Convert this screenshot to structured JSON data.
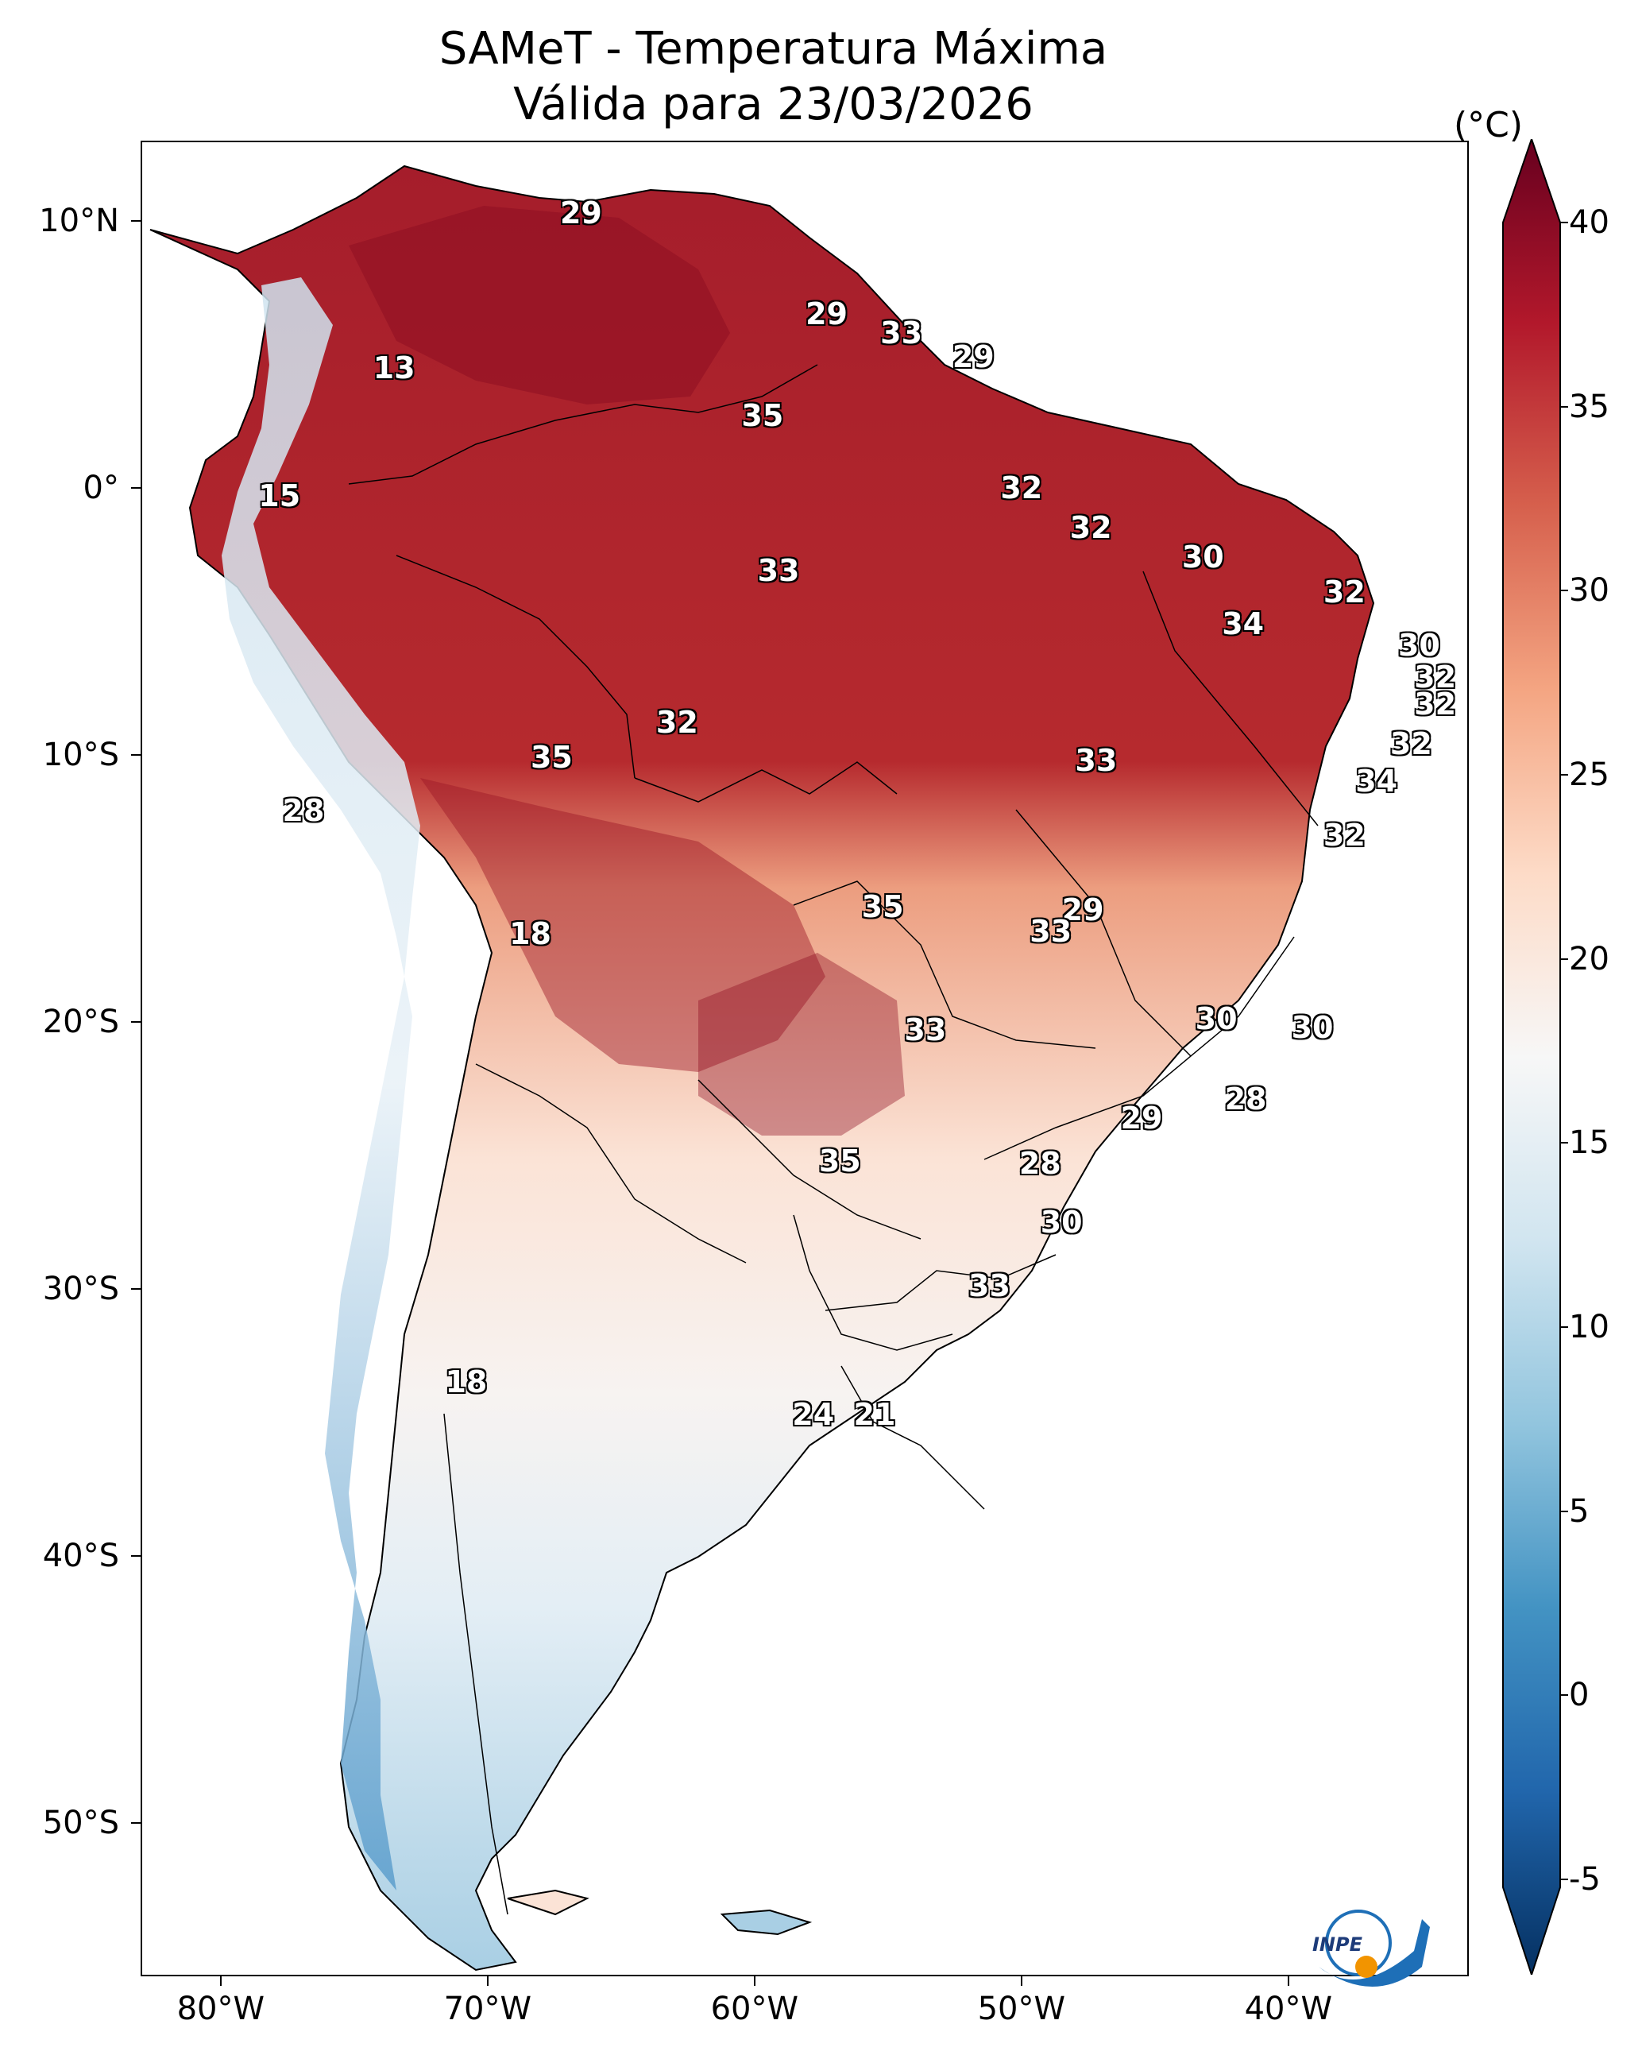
{
  "title": {
    "line1": "SAMeT - Temperatura Máxima",
    "line2": "Válida para 23/03/2026"
  },
  "axes": {
    "lat_ticks": [
      "10°N",
      "0°",
      "10°S",
      "20°S",
      "30°S",
      "40°S",
      "50°S"
    ],
    "lon_ticks": [
      "80°W",
      "70°W",
      "60°W",
      "50°W",
      "40°W"
    ]
  },
  "colorbar": {
    "unit": "(°C)",
    "ticks": [
      "40",
      "35",
      "30",
      "25",
      "20",
      "15",
      "10",
      "5",
      "0",
      "-5"
    ],
    "min": -5,
    "max": 40,
    "colors": [
      "#053061",
      "#2166ac",
      "#4393c3",
      "#92c5de",
      "#d1e5f0",
      "#f7f7f7",
      "#fddbc7",
      "#f4a582",
      "#d6604d",
      "#b2182b",
      "#67001f"
    ]
  },
  "logo": {
    "text": "INPE",
    "name": "inpe-logo"
  },
  "labels": [
    {
      "text": "29",
      "lon": -66.5,
      "lat": 10.3
    },
    {
      "text": "13",
      "lon": -73.5,
      "lat": 4.5
    },
    {
      "text": "29",
      "lon": -57.3,
      "lat": 6.5
    },
    {
      "text": "33",
      "lon": -54.5,
      "lat": 5.8
    },
    {
      "text": "29",
      "lon": -51.8,
      "lat": 4.9
    },
    {
      "text": "35",
      "lon": -59.7,
      "lat": 2.7
    },
    {
      "text": "15",
      "lon": -77.8,
      "lat": -0.3
    },
    {
      "text": "32",
      "lon": -50.0,
      "lat": 0.0
    },
    {
      "text": "32",
      "lon": -47.4,
      "lat": -1.5
    },
    {
      "text": "33",
      "lon": -59.1,
      "lat": -3.1
    },
    {
      "text": "30",
      "lon": -43.2,
      "lat": -2.6
    },
    {
      "text": "32",
      "lon": -37.9,
      "lat": -3.9
    },
    {
      "text": "34",
      "lon": -41.7,
      "lat": -5.1
    },
    {
      "text": "30",
      "lon": -35.1,
      "lat": -5.9
    },
    {
      "text": "32",
      "lon": -34.5,
      "lat": -7.1
    },
    {
      "text": "32",
      "lon": -34.5,
      "lat": -8.1
    },
    {
      "text": "32",
      "lon": -62.9,
      "lat": -8.8
    },
    {
      "text": "35",
      "lon": -67.6,
      "lat": -10.1
    },
    {
      "text": "33",
      "lon": -47.2,
      "lat": -10.2
    },
    {
      "text": "32",
      "lon": -35.4,
      "lat": -9.6
    },
    {
      "text": "34",
      "lon": -36.7,
      "lat": -11.0
    },
    {
      "text": "28",
      "lon": -76.9,
      "lat": -12.1
    },
    {
      "text": "32",
      "lon": -37.9,
      "lat": -13.0
    },
    {
      "text": "35",
      "lon": -55.2,
      "lat": -15.7
    },
    {
      "text": "29",
      "lon": -47.7,
      "lat": -15.8
    },
    {
      "text": "33",
      "lon": -48.9,
      "lat": -16.6
    },
    {
      "text": "18",
      "lon": -68.4,
      "lat": -16.7
    },
    {
      "text": "30",
      "lon": -42.7,
      "lat": -19.9
    },
    {
      "text": "30",
      "lon": -39.1,
      "lat": -20.2
    },
    {
      "text": "33",
      "lon": -53.6,
      "lat": -20.3
    },
    {
      "text": "28",
      "lon": -41.6,
      "lat": -22.9
    },
    {
      "text": "29",
      "lon": -45.5,
      "lat": -23.6
    },
    {
      "text": "35",
      "lon": -56.8,
      "lat": -25.2
    },
    {
      "text": "28",
      "lon": -49.3,
      "lat": -25.3
    },
    {
      "text": "30",
      "lon": -48.5,
      "lat": -27.5
    },
    {
      "text": "33",
      "lon": -51.2,
      "lat": -29.9
    },
    {
      "text": "18",
      "lon": -70.8,
      "lat": -33.5
    },
    {
      "text": "24",
      "lon": -57.8,
      "lat": -34.7
    },
    {
      "text": "21",
      "lon": -55.5,
      "lat": -34.7
    }
  ]
}
